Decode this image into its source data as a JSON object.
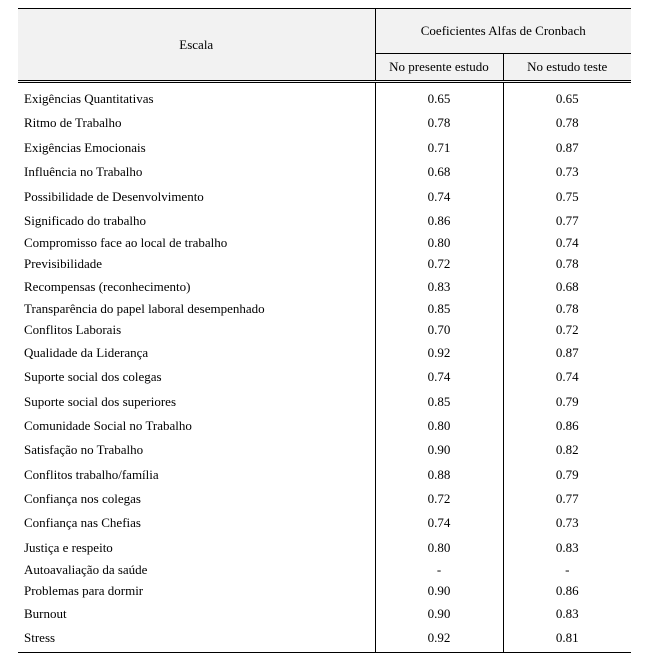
{
  "header": {
    "escala": "Escala",
    "group": "Coeficientes Alfas de Cronbach",
    "col1": "No presente estudo",
    "col2": "No estudo teste"
  },
  "rows": [
    {
      "label": "Exigências Quantitativas",
      "v1": "0.65",
      "v2": "0.65",
      "tight": false
    },
    {
      "label": "Ritmo de Trabalho",
      "v1": "0.78",
      "v2": "0.78",
      "tight": false
    },
    {
      "label": "Exigências Emocionais",
      "v1": "0.71",
      "v2": "0.87",
      "tight": false
    },
    {
      "label": "Influência no Trabalho",
      "v1": "0.68",
      "v2": "0.73",
      "tight": false
    },
    {
      "label": "Possibilidade de Desenvolvimento",
      "v1": "0.74",
      "v2": "0.75",
      "tight": false
    },
    {
      "label": "Significado do trabalho",
      "v1": "0.86",
      "v2": "0.77",
      "tight": false
    },
    {
      "label": "Compromisso face ao local de trabalho",
      "v1": "0.80",
      "v2": "0.74",
      "tight": true
    },
    {
      "label": "Previsibilidade",
      "v1": "0.72",
      "v2": "0.78",
      "tight": true
    },
    {
      "label": "Recompensas (reconhecimento)",
      "v1": "0.83",
      "v2": "0.68",
      "tight": false
    },
    {
      "label": "Transparência do papel laboral desempenhado",
      "v1": "0.85",
      "v2": "0.78",
      "tight": true
    },
    {
      "label": "Conflitos Laborais",
      "v1": "0.70",
      "v2": "0.72",
      "tight": true
    },
    {
      "label": "Qualidade da Liderança",
      "v1": "0.92",
      "v2": "0.87",
      "tight": false
    },
    {
      "label": "Suporte social dos colegas",
      "v1": "0.74",
      "v2": "0.74",
      "tight": false
    },
    {
      "label": "Suporte social dos superiores",
      "v1": "0.85",
      "v2": "0.79",
      "tight": false
    },
    {
      "label": "Comunidade Social no Trabalho",
      "v1": "0.80",
      "v2": "0.86",
      "tight": false
    },
    {
      "label": "Satisfação no Trabalho",
      "v1": "0.90",
      "v2": "0.82",
      "tight": false
    },
    {
      "label": "Conflitos trabalho/família",
      "v1": "0.88",
      "v2": "0.79",
      "tight": false
    },
    {
      "label": "Confiança nos colegas",
      "v1": "0.72",
      "v2": "0.77",
      "tight": false
    },
    {
      "label": "Confiança nas Chefias",
      "v1": "0.74",
      "v2": "0.73",
      "tight": false
    },
    {
      "label": "Justiça e respeito",
      "v1": "0.80",
      "v2": "0.83",
      "tight": false
    },
    {
      "label": "Autoavaliação da saúde",
      "v1": "-",
      "v2": "-",
      "tight": true
    },
    {
      "label": "Problemas para dormir",
      "v1": "0.90",
      "v2": "0.86",
      "tight": true
    },
    {
      "label": "Burnout",
      "v1": "0.90",
      "v2": "0.83",
      "tight": false
    },
    {
      "label": "Stress",
      "v1": "0.92",
      "v2": "0.81",
      "tight": false
    }
  ]
}
